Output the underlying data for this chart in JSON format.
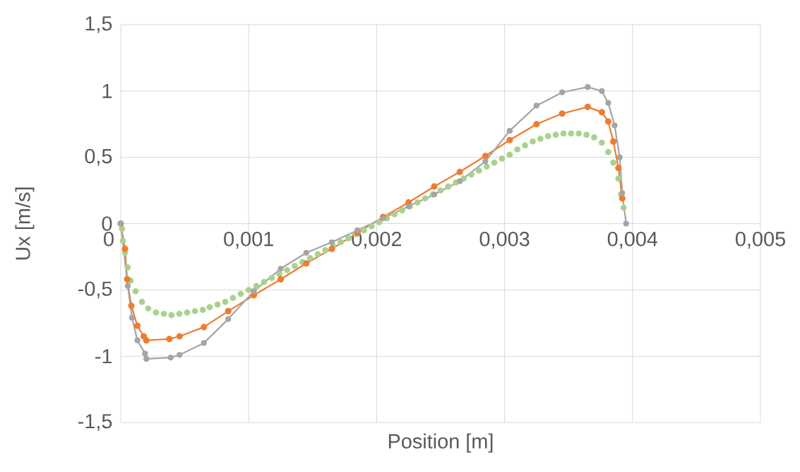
{
  "chart_data": {
    "type": "line",
    "xlabel": "Position [m]",
    "ylabel": "Ux [m/s]",
    "xlim": [
      0,
      0.005
    ],
    "ylim": [
      -1.5,
      1.5
    ],
    "xticks": [
      {
        "value": 0,
        "label": "0"
      },
      {
        "value": 0.001,
        "label": "0,001"
      },
      {
        "value": 0.002,
        "label": "0,002"
      },
      {
        "value": 0.003,
        "label": "0,003"
      },
      {
        "value": 0.004,
        "label": "0,004"
      },
      {
        "value": 0.005,
        "label": "0,005"
      }
    ],
    "yticks": [
      {
        "value": -1.5,
        "label": "-1,5"
      },
      -1,
      {
        "value": -0.5,
        "label": "-0,5"
      },
      0,
      {
        "value": 0.5,
        "label": "0,5"
      },
      1,
      {
        "value": 1.5,
        "label": "1,5"
      }
    ],
    "grid": true,
    "marker": "circle",
    "line_style": "solid",
    "series": [
      {
        "type": "scatter",
        "color": "#a9d18e",
        "x": [
          1e-05,
          1.7e-05,
          3.3e-05,
          5.5e-05,
          7.7e-05,
          0.000116,
          0.000166,
          0.000215,
          0.000276,
          0.000337,
          0.000397,
          0.000458,
          0.000519,
          0.00058,
          0.000641,
          0.000695,
          0.000756,
          0.000817,
          0.000877,
          0.000938,
          0.001,
          0.00106,
          0.00112,
          0.00118,
          0.00124,
          0.0013,
          0.00136,
          0.00142,
          0.00148,
          0.00154,
          0.0016,
          0.00166,
          0.00172,
          0.00178,
          0.00184,
          0.0019,
          0.00196,
          0.00202,
          0.00208,
          0.00214,
          0.0022,
          0.00226,
          0.00232,
          0.00238,
          0.00244,
          0.0025,
          0.00256,
          0.00262,
          0.00268,
          0.00274,
          0.0028,
          0.00286,
          0.00292,
          0.00298,
          0.00304,
          0.0031,
          0.00316,
          0.00322,
          0.00328,
          0.00334,
          0.0034,
          0.00346,
          0.00352,
          0.00358,
          0.00364,
          0.0037,
          0.00376,
          0.00381,
          0.00385,
          0.00389,
          0.00391,
          0.00393
        ],
        "values": [
          -0.04,
          -0.13,
          -0.22,
          -0.33,
          -0.43,
          -0.51,
          -0.59,
          -0.64,
          -0.67,
          -0.68,
          -0.69,
          -0.68,
          -0.67,
          -0.66,
          -0.65,
          -0.63,
          -0.61,
          -0.59,
          -0.56,
          -0.53,
          -0.5,
          -0.47,
          -0.44,
          -0.41,
          -0.38,
          -0.35,
          -0.32,
          -0.29,
          -0.26,
          -0.23,
          -0.2,
          -0.17,
          -0.14,
          -0.11,
          -0.08,
          -0.05,
          -0.02,
          0.01,
          0.04,
          0.07,
          0.1,
          0.13,
          0.16,
          0.19,
          0.22,
          0.25,
          0.28,
          0.31,
          0.34,
          0.37,
          0.4,
          0.43,
          0.46,
          0.49,
          0.52,
          0.56,
          0.59,
          0.62,
          0.64,
          0.66,
          0.67,
          0.68,
          0.68,
          0.68,
          0.67,
          0.65,
          0.61,
          0.54,
          0.46,
          0.34,
          0.22,
          0.12
        ]
      },
      {
        "color": "#ed7d31",
        "x": [
          0,
          3.3e-05,
          5e-05,
          8.3e-05,
          0.00013,
          0.00018,
          0.0002,
          0.00038,
          0.00046,
          0.00065,
          0.00084,
          0.00104,
          0.00125,
          0.00145,
          0.00165,
          0.00185,
          0.00205,
          0.00225,
          0.00245,
          0.00265,
          0.00285,
          0.00304,
          0.00325,
          0.00345,
          0.00365,
          0.00376,
          0.00381,
          0.00385,
          0.00389,
          0.00392
        ],
        "values": [
          0,
          -0.19,
          -0.42,
          -0.62,
          -0.77,
          -0.85,
          -0.88,
          -0.87,
          -0.85,
          -0.78,
          -0.66,
          -0.54,
          -0.42,
          -0.3,
          -0.19,
          -0.07,
          0.05,
          0.16,
          0.28,
          0.39,
          0.51,
          0.63,
          0.75,
          0.83,
          0.88,
          0.84,
          0.77,
          0.62,
          0.42,
          0.19
        ]
      },
      {
        "color": "#a5a5a5",
        "x": [
          0,
          5.5e-05,
          8.8e-05,
          0.00013,
          0.00019,
          0.0002,
          0.00039,
          0.00046,
          0.00065,
          0.00084,
          0.00104,
          0.00125,
          0.00145,
          0.00165,
          0.00185,
          0.00205,
          0.00225,
          0.00245,
          0.00265,
          0.00285,
          0.00304,
          0.00325,
          0.00345,
          0.00365,
          0.00376,
          0.00381,
          0.00386,
          0.0039,
          0.00392,
          0.00395
        ],
        "values": [
          0,
          -0.47,
          -0.71,
          -0.88,
          -0.98,
          -1.02,
          -1.01,
          -0.99,
          -0.9,
          -0.72,
          -0.51,
          -0.34,
          -0.22,
          -0.14,
          -0.05,
          0.04,
          0.13,
          0.22,
          0.32,
          0.47,
          0.7,
          0.89,
          0.99,
          1.03,
          1.0,
          0.91,
          0.74,
          0.5,
          0.23,
          0
        ]
      }
    ]
  }
}
